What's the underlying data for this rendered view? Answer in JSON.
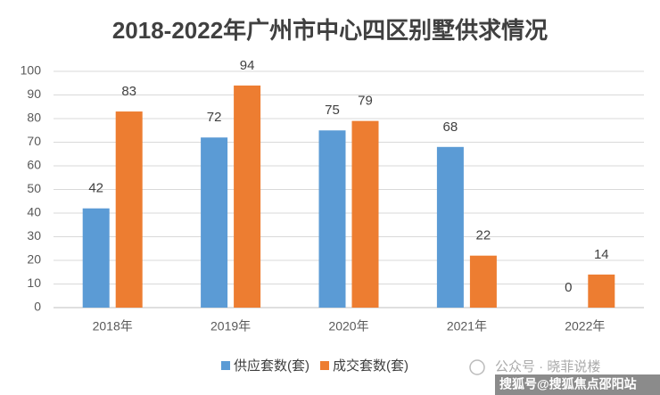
{
  "chart_data": {
    "type": "bar",
    "title": "2018-2022年广州市中心四区别墅供求情况",
    "categories": [
      "2018年",
      "2019年",
      "2020年",
      "2021年",
      "2022年"
    ],
    "series": [
      {
        "name": "供应套数(套)",
        "color": "#5b9bd5",
        "values": [
          42,
          72,
          75,
          68,
          0
        ]
      },
      {
        "name": "成交套数(套)",
        "color": "#ed7d31",
        "values": [
          83,
          94,
          79,
          22,
          14
        ]
      }
    ],
    "ylim": [
      0,
      100
    ],
    "yticks": [
      0,
      10,
      20,
      30,
      40,
      50,
      60,
      70,
      80,
      90,
      100
    ],
    "grid": true,
    "legend": "bottom",
    "annotations": [
      "公众号 · 晓菲说楼",
      "搜狐号@搜狐焦点邵阳站"
    ]
  }
}
